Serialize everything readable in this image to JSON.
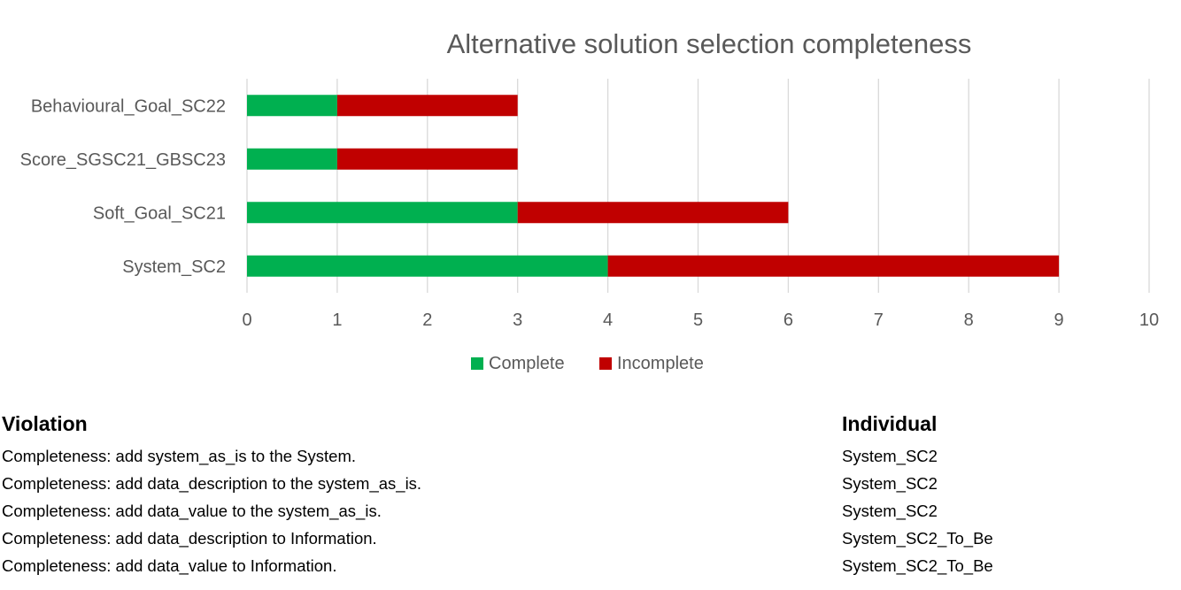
{
  "chart_data": {
    "type": "bar",
    "orientation": "horizontal",
    "stacked": true,
    "title": "Alternative solution selection completeness",
    "categories": [
      "Behavioural_Goal_SC22",
      "Score_SGSC21_GBSC23",
      "Soft_Goal_SC21",
      "System_SC2"
    ],
    "series": [
      {
        "name": "Complete",
        "color": "#00b050",
        "values": [
          1,
          1,
          3,
          4
        ]
      },
      {
        "name": "Incomplete",
        "color": "#c00000",
        "values": [
          2,
          2,
          3,
          5
        ]
      }
    ],
    "xlim": [
      0,
      10
    ],
    "xticks": [
      "0",
      "1",
      "2",
      "3",
      "4",
      "5",
      "6",
      "7",
      "8",
      "9",
      "10"
    ],
    "grid": true,
    "legend": "bottom"
  },
  "table": {
    "headers": {
      "violation": "Violation",
      "individual": "Individual"
    },
    "rows": [
      {
        "violation": "Completeness: add system_as_is to the System.",
        "individual": "System_SC2"
      },
      {
        "violation": "Completeness: add data_description to the system_as_is.",
        "individual": "System_SC2"
      },
      {
        "violation": "Completeness: add data_value to the system_as_is.",
        "individual": "System_SC2"
      },
      {
        "violation": "Completeness: add data_description to Information.",
        "individual": "System_SC2_To_Be"
      },
      {
        "violation": "Completeness: add data_value to Information.",
        "individual": "System_SC2_To_Be"
      }
    ]
  }
}
